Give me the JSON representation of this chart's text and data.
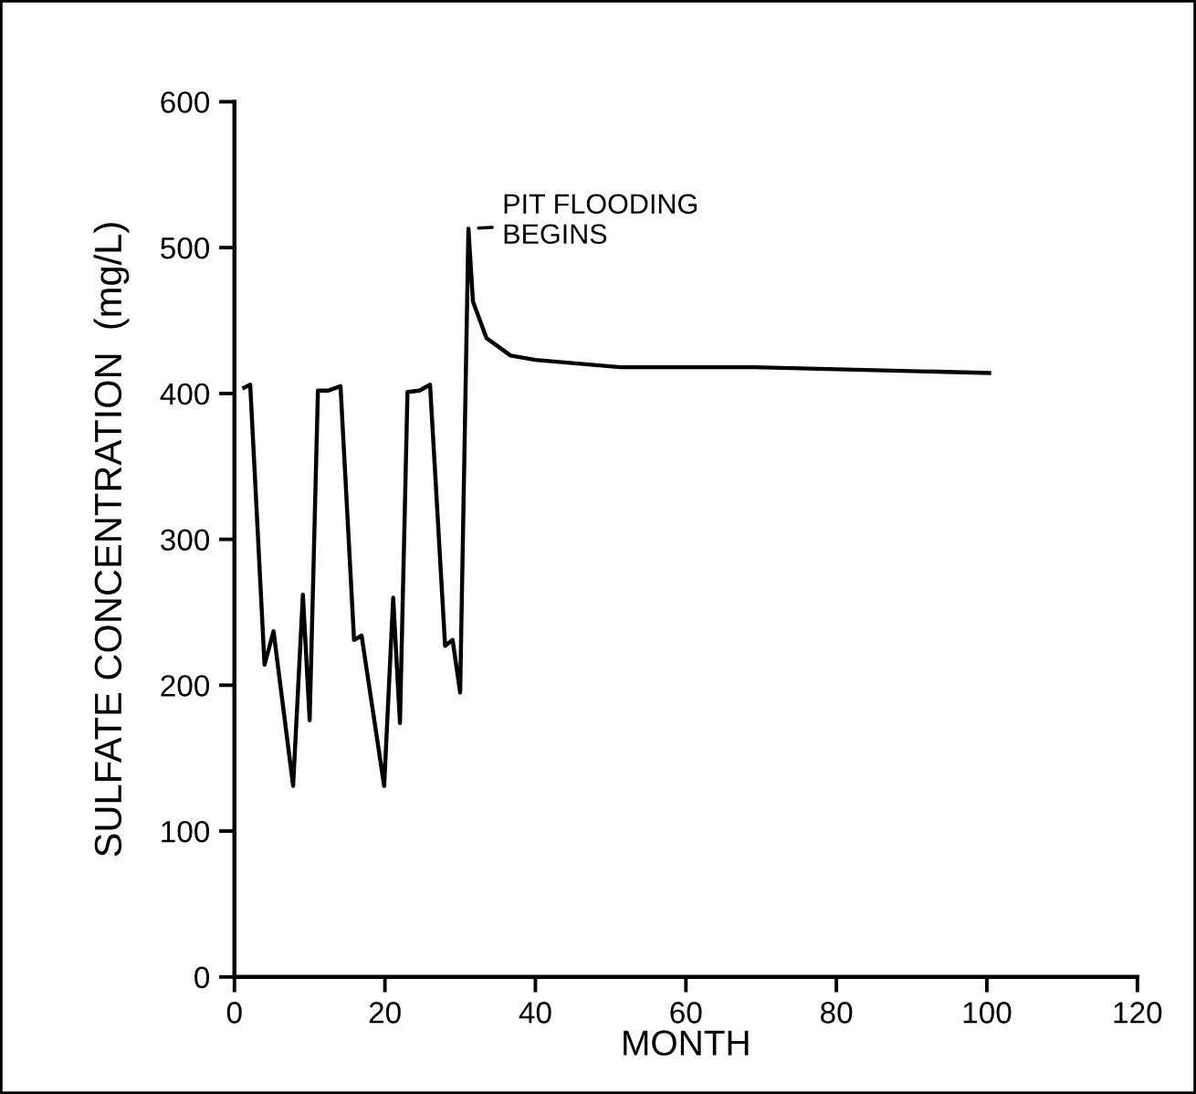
{
  "chart_data": {
    "type": "line",
    "xlabel": "MONTH",
    "ylabel": "SULFATE CONCENTRATION  (mg/L)",
    "x": [
      1.3,
      2.1,
      4.0,
      5.2,
      7.8,
      9.1,
      10.0,
      11.1,
      12.5,
      14.1,
      15.9,
      16.9,
      19.9,
      21.1,
      22.0,
      23.0,
      24.6,
      26.0,
      28.0,
      29.0,
      30.0,
      31.1,
      31.7,
      33.5,
      36.7,
      40,
      51.3,
      69.1,
      100.3
    ],
    "series": [
      {
        "color": "#000000",
        "values": [
          404,
          406,
          214,
          237,
          131,
          262,
          176,
          402,
          402,
          405,
          231,
          234,
          131,
          260,
          174,
          401,
          402,
          406,
          227,
          231,
          195,
          513,
          463,
          438,
          426,
          423,
          418,
          418,
          414
        ]
      }
    ],
    "annotations": [
      {
        "text": "PIT FLOODING\nBEGINS",
        "x": 31.1,
        "y": 513
      }
    ],
    "xlim": [
      0,
      120
    ],
    "xticks": [
      0,
      20,
      40,
      60,
      80,
      100,
      120
    ],
    "ylim": [
      0,
      600
    ],
    "yticks": [
      0,
      100,
      200,
      300,
      400,
      500,
      600
    ],
    "grid": false,
    "legend": false,
    "marker": "none",
    "line_style": "solid"
  }
}
